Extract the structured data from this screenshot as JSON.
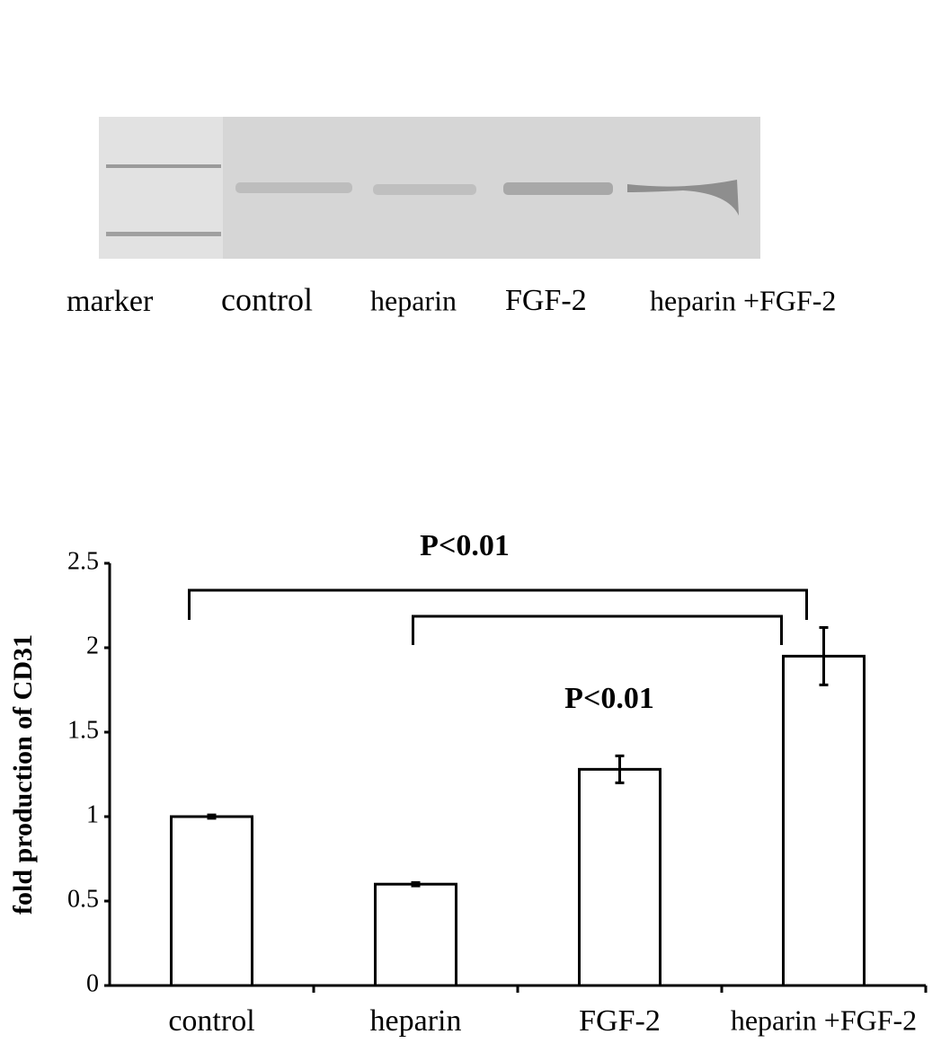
{
  "blot": {
    "lanes": [
      "marker",
      "control",
      "heparin",
      "FGF-2",
      "heparin +FGF-2"
    ]
  },
  "chart_data": {
    "type": "bar",
    "ylabel": "fold production of CD31",
    "categories": [
      "control",
      "heparin",
      "FGF-2",
      "heparin +FGF-2"
    ],
    "values": [
      1.0,
      0.6,
      1.28,
      1.95
    ],
    "errors": [
      0.01,
      0.01,
      0.08,
      0.17
    ],
    "color": "#ffffff",
    "ylim": [
      0,
      2.5
    ],
    "yticks": [
      0,
      0.5,
      1,
      1.5,
      2,
      2.5
    ],
    "annotations": [
      "P<0.01",
      "P<0.01"
    ]
  }
}
